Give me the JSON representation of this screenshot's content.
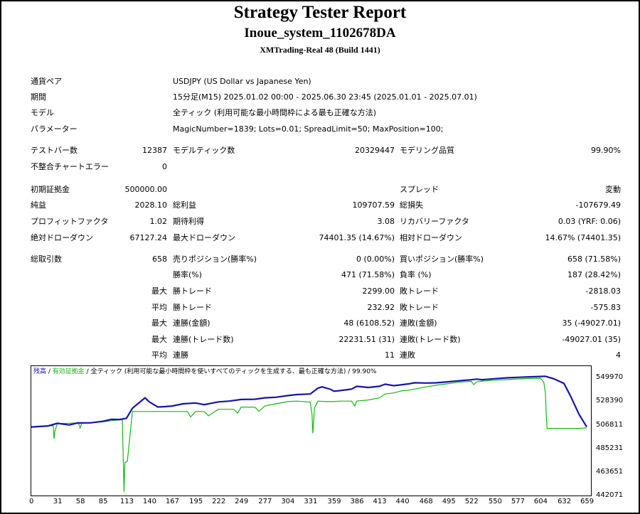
{
  "header": {
    "title": "Strategy Tester Report",
    "ea_name": "Inoue_system_1102678DA",
    "server": "XMTrading-Real 48 (Build 1441)"
  },
  "settings": {
    "symbol_label": "通貨ペア",
    "symbol_value": "USDJPY (US Dollar vs Japanese Yen)",
    "period_label": "期間",
    "period_value": "15分足(M15) 2025.01.02 00:00 - 2025.06.30 23:45 (2025.01.01 - 2025.07.01)",
    "model_label": "モデル",
    "model_value": "全ティック (利用可能な最小時間枠による最も正確な方法)",
    "params_label": "パラメーター",
    "params_value": "MagicNumber=1839; Lots=0.01; SpreadLimit=50; MaxPosition=100;"
  },
  "stats": {
    "bars_label": "テストバー数",
    "bars_value": "12387",
    "ticks_label": "モデルティック数",
    "ticks_value": "20329447",
    "quality_label": "モデリング品質",
    "quality_value": "99.90%",
    "mismatch_label": "不整合チャートエラー",
    "mismatch_value": "0",
    "deposit_label": "初期証拠金",
    "deposit_value": "500000.00",
    "spread_label": "スプレッド",
    "spread_value": "変動",
    "net_label": "純益",
    "net_value": "2028.10",
    "gross_profit_label": "総利益",
    "gross_profit_value": "109707.59",
    "gross_loss_label": "総損失",
    "gross_loss_value": "-107679.49",
    "pf_label": "プロフィットファクタ",
    "pf_value": "1.02",
    "expected_label": "期待利得",
    "expected_value": "3.08",
    "recovery_label": "リカバリーファクタ",
    "recovery_value": "0.03 (YRF: 0.06)",
    "abs_dd_label": "絶対ドローダウン",
    "abs_dd_value": "67127.24",
    "max_dd_label": "最大ドローダウン",
    "max_dd_value": "74401.35 (14.67%)",
    "rel_dd_label": "相対ドローダウン",
    "rel_dd_value": "14.67% (74401.35)"
  },
  "trades": {
    "total_label": "総取引数",
    "total_value": "658",
    "short_label": "売りポジション(勝率%)",
    "short_value": "0 (0.00%)",
    "long_label": "買いポジション(勝率%)",
    "long_value": "658 (71.58%)",
    "winrate_label": "勝率(%)",
    "winrate_value": "471 (71.58%)",
    "lossrate_label": "負率 (%)",
    "lossrate_value": "187 (28.42%)",
    "max_prefix": "最大",
    "avg_prefix": "平均",
    "win_trade_label": "勝トレード",
    "loss_trade_label": "敗トレード",
    "max_win_value": "2299.00",
    "max_loss_value": "-2818.03",
    "avg_win_value": "232.92",
    "avg_loss_value": "-575.83",
    "cons_win_amt_label": "連勝(金額)",
    "cons_win_amt_value": "48 (6108.52)",
    "cons_loss_amt_label": "連敗(金額)",
    "cons_loss_amt_value": "35 (-49027.01)",
    "cons_win_cnt_label": "連勝(トレード数)",
    "cons_win_cnt_value": "22231.51 (31)",
    "cons_loss_cnt_label": "連敗(トレード数)",
    "cons_loss_cnt_value": "-49027.01 (35)",
    "avg_cons_win_label": "連勝",
    "avg_cons_win_value": "11",
    "avg_cons_loss_label": "連敗",
    "avg_cons_loss_value": "4"
  },
  "chart_legend": {
    "balance": "残高",
    "sep1": " / ",
    "equity": "有効証拠金",
    "sep2": " / ",
    "model": "全ティック (利用可能な最小時間枠を使いすべてのティックを生成する、最も正確な方法)",
    "sep3": " / ",
    "quality": "99.90%"
  },
  "chart_data": {
    "type": "line",
    "series": [
      {
        "name": "残高",
        "color": "#1515a8",
        "x": [
          0,
          20,
          31,
          45,
          55,
          70,
          85,
          95,
          105,
          113,
          120,
          135,
          140,
          150,
          160,
          167,
          180,
          195,
          205,
          222,
          235,
          249,
          265,
          277,
          290,
          304,
          315,
          331,
          340,
          345,
          355,
          359,
          365,
          380,
          386,
          400,
          413,
          420,
          430,
          440,
          448,
          455,
          468,
          480,
          495,
          510,
          522,
          528,
          535,
          550,
          565,
          577,
          590,
          604,
          610,
          620,
          632,
          640,
          650,
          659
        ],
        "y": [
          504800,
          505800,
          508200,
          506600,
          508500,
          508600,
          510000,
          511800,
          511600,
          512800,
          522000,
          531500,
          527800,
          523100,
          523500,
          524000,
          526000,
          526800,
          525200,
          527800,
          528500,
          530000,
          530200,
          531500,
          532000,
          533500,
          534500,
          535000,
          540300,
          541500,
          539300,
          537500,
          538000,
          539500,
          542000,
          541000,
          542000,
          544000,
          542600,
          543500,
          544300,
          545300,
          545000,
          545200,
          546200,
          547200,
          548000,
          548600,
          548100,
          549000,
          549800,
          550200,
          550700,
          551000,
          551200,
          548900,
          544600,
          532800,
          516200,
          504900
        ]
      },
      {
        "name": "有効証拠金",
        "color": "#14b814",
        "x": [
          0,
          20,
          26,
          27,
          28,
          31,
          45,
          55,
          57,
          58,
          60,
          70,
          85,
          95,
          100,
          108,
          110,
          111,
          113,
          114,
          116,
          120,
          135,
          140,
          150,
          160,
          167,
          185,
          187,
          189,
          195,
          205,
          208,
          210,
          222,
          240,
          243,
          245,
          249,
          265,
          268,
          270,
          277,
          290,
          304,
          315,
          331,
          332,
          333,
          334,
          336,
          340,
          350,
          359,
          365,
          380,
          382,
          384,
          386,
          400,
          413,
          420,
          430,
          440,
          448,
          455,
          468,
          480,
          495,
          510,
          522,
          525,
          528,
          535,
          550,
          565,
          577,
          590,
          604,
          608,
          610,
          611,
          612,
          613,
          614,
          620,
          632,
          640,
          650,
          659
        ],
        "y": [
          505000,
          505800,
          506000,
          494000,
          501000,
          508000,
          508200,
          508500,
          506500,
          504000,
          508400,
          508600,
          509500,
          510500,
          511000,
          511500,
          445500,
          472000,
          473000,
          473500,
          488500,
          519000,
          519000,
          519000,
          519000,
          519000,
          519000,
          519000,
          517000,
          514000,
          519000,
          519000,
          517000,
          515000,
          521000,
          521000,
          519000,
          517500,
          523000,
          523000,
          521000,
          519000,
          524000,
          526000,
          528000,
          528500,
          527500,
          522000,
          517000,
          499000,
          522000,
          528500,
          528000,
          528000,
          528500,
          528500,
          526000,
          524000,
          528500,
          529500,
          531500,
          535000,
          536000,
          538000,
          538500,
          539500,
          541500,
          543000,
          544500,
          546000,
          546500,
          543500,
          546000,
          546800,
          547600,
          548200,
          548700,
          549200,
          549400,
          546000,
          536000,
          515000,
          503500,
          503500,
          503500,
          503500,
          503500,
          503500,
          503500,
          504000
        ]
      }
    ],
    "xlim": [
      0,
      664
    ],
    "ylim": [
      442071,
      560500
    ],
    "y_ticks": [
      549970,
      528390,
      506811,
      485231,
      463651,
      442071
    ],
    "x_ticks": [
      0,
      31,
      58,
      85,
      113,
      140,
      167,
      195,
      222,
      249,
      277,
      304,
      331,
      359,
      386,
      413,
      440,
      468,
      495,
      522,
      550,
      577,
      604,
      632,
      659
    ]
  }
}
